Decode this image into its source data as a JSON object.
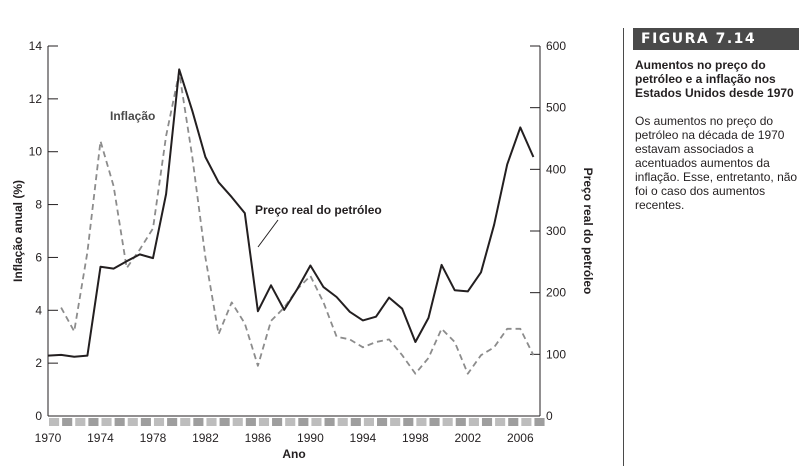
{
  "caption": {
    "figure_label": "FIGURA 7.14",
    "title": "Aumentos no preço do petróleo e a inflação nos Estados Unidos desde 1970",
    "body": "Os aumentos no preço do petróleo na década de 1970 estavam associados a acentuados aumentos da inflação. Esse, entretanto, não foi o caso dos aumentos recentes."
  },
  "chart_data": {
    "type": "line",
    "xlabel": "Ano",
    "ylabel_left": "Inflação anual (%)",
    "ylabel_right": "Preço real do petróleo",
    "xlim": [
      1970,
      2007
    ],
    "ylim_left": [
      0,
      14
    ],
    "ylim_right": [
      0,
      600
    ],
    "x_ticks": [
      "1970",
      "1974",
      "1978",
      "1982",
      "1986",
      "1990",
      "1994",
      "1998",
      "2002",
      "2006"
    ],
    "y_ticks_left": [
      "0",
      "2",
      "4",
      "6",
      "8",
      "10",
      "12",
      "14"
    ],
    "y_ticks_right": [
      "0",
      "100",
      "200",
      "300",
      "400",
      "500",
      "600"
    ],
    "grid": false,
    "x": [
      1970,
      1971,
      1972,
      1973,
      1974,
      1975,
      1976,
      1977,
      1978,
      1979,
      1980,
      1981,
      1982,
      1983,
      1984,
      1985,
      1986,
      1987,
      1988,
      1989,
      1990,
      1991,
      1992,
      1993,
      1994,
      1995,
      1996,
      1997,
      1998,
      1999,
      2000,
      2001,
      2002,
      2003,
      2004,
      2005,
      2006,
      2007
    ],
    "series": [
      {
        "name": "Inflação",
        "axis": "left",
        "style": "dashed",
        "color": "#8c8c8c",
        "values": [
          null,
          4.1,
          3.2,
          6.2,
          10.4,
          8.7,
          5.6,
          6.3,
          7.1,
          10.6,
          13.0,
          9.8,
          6.0,
          3.1,
          4.3,
          3.5,
          1.9,
          3.6,
          4.1,
          4.8,
          5.3,
          4.3,
          3.0,
          2.9,
          2.6,
          2.8,
          2.9,
          2.3,
          1.6,
          2.2,
          3.3,
          2.8,
          1.6,
          2.3,
          2.6,
          3.3,
          3.3,
          2.3
        ]
      },
      {
        "name": "Preço real do petróleo",
        "axis": "right",
        "style": "solid",
        "color": "#231f20",
        "values": [
          98,
          99,
          96,
          98,
          242,
          239,
          251,
          262,
          256,
          360,
          562,
          495,
          420,
          379,
          355,
          329,
          170,
          212,
          172,
          206,
          244,
          209,
          193,
          169,
          155,
          161,
          192,
          174,
          120,
          159,
          245,
          204,
          202,
          233,
          310,
          408,
          468,
          420
        ]
      }
    ]
  }
}
